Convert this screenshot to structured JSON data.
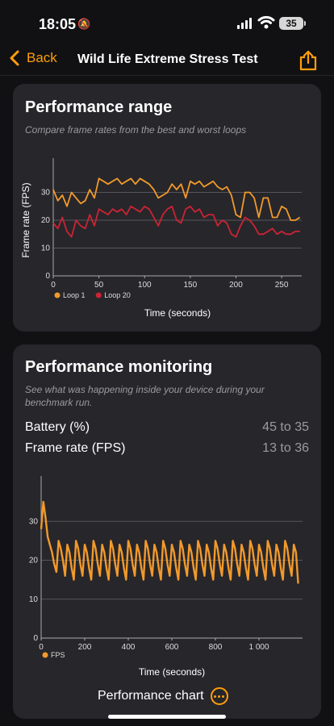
{
  "status": {
    "time": "18:05",
    "battery": "35"
  },
  "nav": {
    "back_label": "Back",
    "title": "Wild Life Extreme Stress Test"
  },
  "range_card": {
    "title": "Performance range",
    "subtitle": "Compare frame rates from the best and worst loops"
  },
  "monitoring_card": {
    "title": "Performance monitoring",
    "subtitle": "See what was happening inside your device during your benchmark run.",
    "battery_label": "Battery (%)",
    "battery_value": "45 to 35",
    "fps_label": "Frame rate (FPS)",
    "fps_value": "13 to 36",
    "chart_link": "Performance chart"
  },
  "colors": {
    "accent": "#ff9f0a",
    "loop1": "#f19a2b",
    "loop20": "#ca2434",
    "card": "#27262b"
  },
  "icons": [
    "chevron-left-icon",
    "share-icon",
    "bell-slash-icon",
    "more-icon"
  ],
  "chart_data": [
    {
      "type": "line",
      "xlabel": "Time (seconds)",
      "ylabel": "Frame rate (FPS)",
      "xlim": [
        0,
        272
      ],
      "ylim": [
        0,
        40
      ],
      "xticks": [
        0,
        50,
        100,
        150,
        200,
        250
      ],
      "yticks": [
        0,
        10,
        20,
        30
      ],
      "grid": true,
      "legend": "bottom-left",
      "series": [
        {
          "name": "Loop 1",
          "color": "#f19a2b",
          "x": [
            0,
            5,
            10,
            15,
            20,
            25,
            30,
            35,
            40,
            45,
            50,
            55,
            60,
            65,
            70,
            75,
            80,
            85,
            90,
            95,
            100,
            105,
            110,
            115,
            120,
            125,
            130,
            135,
            140,
            145,
            150,
            155,
            160,
            165,
            170,
            175,
            180,
            185,
            190,
            195,
            200,
            205,
            210,
            215,
            220,
            225,
            230,
            235,
            240,
            245,
            250,
            255,
            260,
            265,
            270
          ],
          "values": [
            31,
            27,
            29,
            25,
            30,
            28,
            26,
            27,
            31,
            28,
            35,
            34,
            33,
            34,
            35,
            33,
            34,
            35,
            33,
            35,
            34,
            33,
            31,
            28,
            29,
            30,
            33,
            31,
            33,
            28,
            34,
            33,
            34,
            32,
            33,
            34,
            32,
            31,
            32,
            29,
            22,
            21,
            30,
            30,
            28,
            21,
            28,
            28,
            21,
            21,
            25,
            24,
            20,
            20,
            21
          ]
        },
        {
          "name": "Loop 20",
          "color": "#ca2434",
          "x": [
            0,
            5,
            10,
            15,
            20,
            25,
            30,
            35,
            40,
            45,
            50,
            55,
            60,
            65,
            70,
            75,
            80,
            85,
            90,
            95,
            100,
            105,
            110,
            115,
            120,
            125,
            130,
            135,
            140,
            145,
            150,
            155,
            160,
            165,
            170,
            175,
            180,
            185,
            190,
            195,
            200,
            205,
            210,
            215,
            220,
            225,
            230,
            235,
            240,
            245,
            250,
            255,
            260,
            265,
            270
          ],
          "values": [
            19,
            17,
            21,
            16,
            14,
            20,
            18,
            17,
            22,
            18,
            24,
            23,
            22,
            24,
            23,
            24,
            22,
            25,
            24,
            23,
            25,
            24,
            21,
            18,
            22,
            24,
            25,
            20,
            19,
            24,
            25,
            23,
            24,
            21,
            22,
            22,
            18,
            20,
            19,
            15,
            14,
            18,
            21,
            20,
            18,
            15,
            15,
            16,
            17,
            15,
            16,
            15,
            15,
            16,
            16
          ]
        }
      ]
    },
    {
      "type": "line",
      "xlabel": "Time (seconds)",
      "ylabel": "",
      "xlim": [
        0,
        1200
      ],
      "ylim": [
        0,
        40
      ],
      "xticks": [
        "0",
        "200",
        "400",
        "600",
        "800",
        "1 000"
      ],
      "yticks": [
        0,
        10,
        20,
        30
      ],
      "grid": true,
      "legend": "bottom-left",
      "series": [
        {
          "name": "FPS",
          "color": "#f19a2b",
          "x": [
            0,
            10,
            20,
            30,
            40,
            50,
            60,
            70,
            80,
            90,
            100,
            110,
            120,
            130,
            140,
            150,
            160,
            170,
            180,
            190,
            200,
            210,
            220,
            230,
            240,
            250,
            260,
            270,
            280,
            290,
            300,
            310,
            320,
            330,
            340,
            350,
            360,
            370,
            380,
            390,
            400,
            410,
            420,
            430,
            440,
            450,
            460,
            470,
            480,
            490,
            500,
            510,
            520,
            530,
            540,
            550,
            560,
            570,
            580,
            590,
            600,
            610,
            620,
            630,
            640,
            650,
            660,
            670,
            680,
            690,
            700,
            710,
            720,
            730,
            740,
            750,
            760,
            770,
            780,
            790,
            800,
            810,
            820,
            830,
            840,
            850,
            860,
            870,
            880,
            890,
            900,
            910,
            920,
            930,
            940,
            950,
            960,
            970,
            980,
            990,
            1000,
            1010,
            1020,
            1030,
            1040,
            1050,
            1060,
            1070,
            1080,
            1090,
            1100,
            1110,
            1120,
            1130,
            1140,
            1150,
            1160,
            1170,
            1180
          ],
          "values": [
            28,
            35,
            31,
            26,
            24,
            22,
            19,
            17,
            25,
            23,
            20,
            16,
            24,
            22,
            18,
            15,
            25,
            23,
            19,
            16,
            24,
            22,
            18,
            15,
            25,
            23,
            19,
            16,
            24,
            22,
            18,
            15,
            25,
            23,
            19,
            16,
            24,
            22,
            18,
            15,
            25,
            23,
            19,
            16,
            24,
            22,
            18,
            15,
            25,
            23,
            19,
            16,
            24,
            22,
            18,
            15,
            25,
            23,
            19,
            16,
            24,
            22,
            18,
            15,
            25,
            23,
            19,
            16,
            24,
            22,
            18,
            15,
            25,
            23,
            19,
            16,
            24,
            22,
            18,
            15,
            25,
            23,
            19,
            16,
            24,
            22,
            18,
            15,
            25,
            23,
            19,
            16,
            24,
            22,
            18,
            15,
            25,
            23,
            19,
            16,
            24,
            22,
            18,
            15,
            25,
            23,
            19,
            16,
            24,
            22,
            18,
            15,
            25,
            23,
            19,
            16,
            24,
            22,
            14
          ]
        }
      ]
    }
  ]
}
